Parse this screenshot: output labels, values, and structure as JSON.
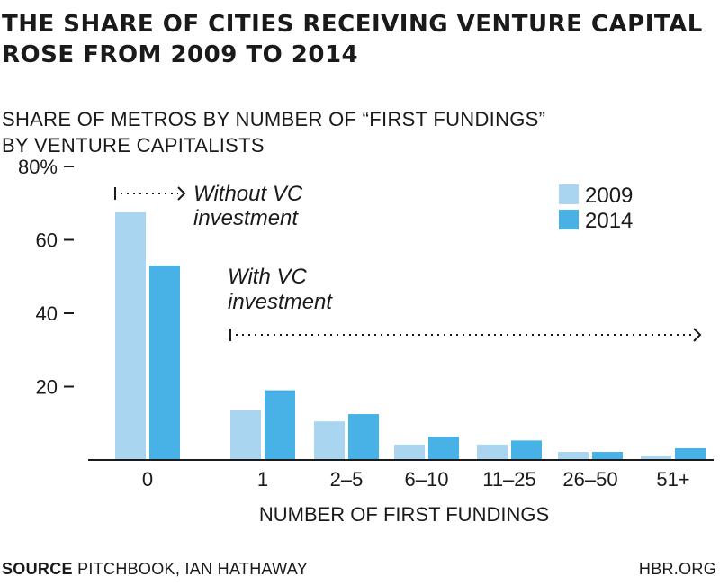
{
  "title_line1": "THE SHARE OF CITIES RECEIVING VENTURE CAPITAL",
  "title_line2": "ROSE FROM 2009 TO 2014",
  "subtitle_line1": "SHARE OF METROS BY NUMBER OF “FIRST FUNDINGS”",
  "subtitle_line2": "BY VENTURE CAPITALISTS",
  "source_label": "SOURCE",
  "source_text": "PITCHBOOK, IAN HATHAWAY",
  "credit": "HBR.ORG",
  "colors": {
    "series_2009": "#aad5f0",
    "series_2014": "#48b1e5",
    "axis": "#1a1a1a"
  },
  "chart_data": {
    "type": "bar",
    "categories": [
      "0",
      "1",
      "2–5",
      "6–10",
      "11–25",
      "26–50",
      "51+"
    ],
    "series": [
      {
        "name": "2009",
        "values": [
          67.5,
          13.5,
          10.5,
          4.2,
          4.2,
          2.2,
          1.0
        ]
      },
      {
        "name": "2014",
        "values": [
          53.0,
          19.0,
          12.5,
          6.3,
          5.3,
          2.2,
          3.2
        ]
      }
    ],
    "xlabel": "NUMBER OF FIRST FUNDINGS",
    "ylabel": "",
    "ylim": [
      0,
      80
    ],
    "y_ticks": [
      {
        "value": 20,
        "label": "20"
      },
      {
        "value": 40,
        "label": "40"
      },
      {
        "value": 60,
        "label": "60"
      },
      {
        "value": 80,
        "label": "80%"
      }
    ],
    "grid": false,
    "legend_position": "top-right",
    "annotations": [
      {
        "line1": "Without VC",
        "line2": "investment"
      },
      {
        "line1": "With VC",
        "line2": "investment"
      }
    ]
  }
}
